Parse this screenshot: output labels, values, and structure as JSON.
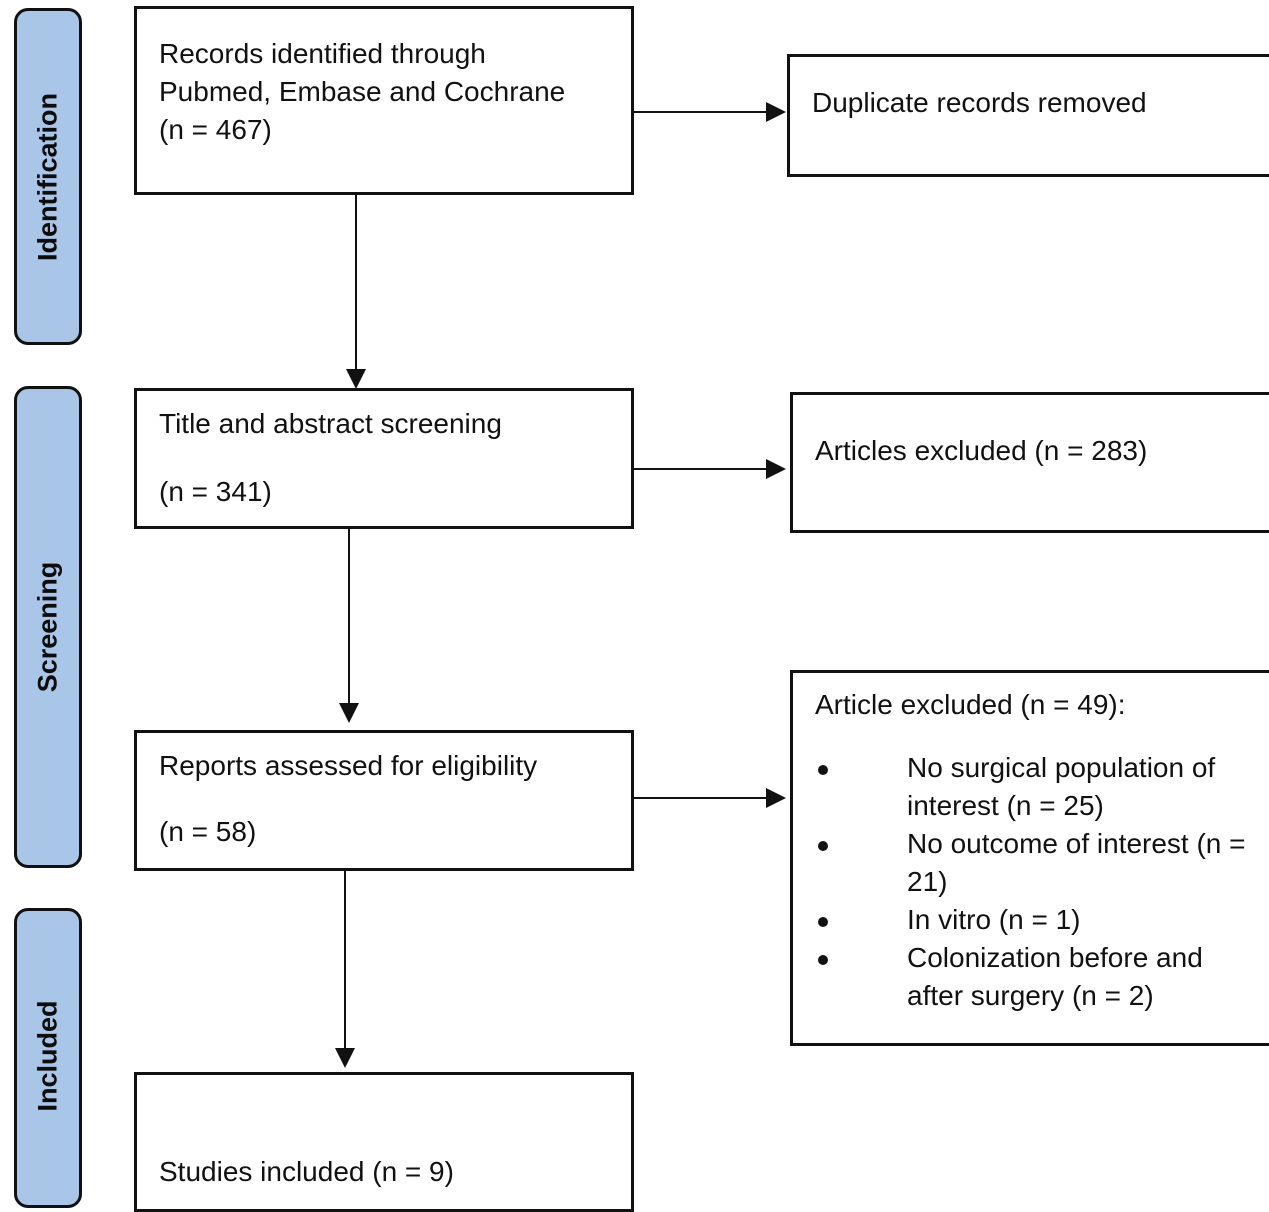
{
  "phases": {
    "identification": "Identification",
    "screening": "Screening",
    "included": "Included"
  },
  "boxes": {
    "records_identified": {
      "line1": "Records identified through",
      "line2": "Pubmed, Embase and Cochrane",
      "line3": "(n = 467)"
    },
    "duplicates_removed": {
      "line1": "Duplicate records removed"
    },
    "title_abstract": {
      "line1": "Title and abstract screening",
      "line2": "(n = 341)"
    },
    "articles_excluded": {
      "line1": "Articles excluded (n = 283)"
    },
    "reports_assessed": {
      "line1": "Reports assessed for eligibility",
      "line2": "(n = 58)"
    },
    "article_excluded_49": {
      "heading": "Article excluded (n = 49):",
      "reasons": [
        "No surgical population of interest (n = 25)",
        "No outcome of interest (n = 21)",
        "In vitro (n = 1)",
        "Colonization before and after surgery (n = 2)"
      ]
    },
    "studies_included": {
      "line1": "Studies included (n = 9)"
    }
  },
  "colors": {
    "phase_fill": "#a9c6e8",
    "stroke": "#111111"
  }
}
